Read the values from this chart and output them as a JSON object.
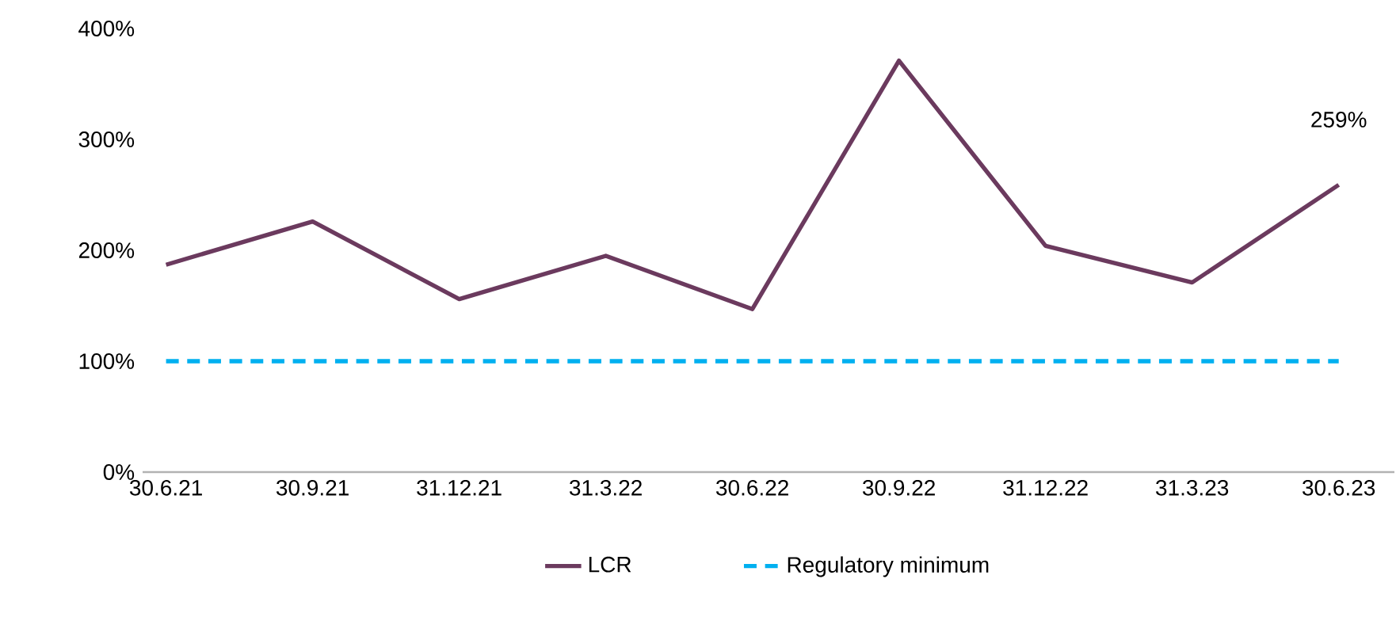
{
  "chart_data": {
    "type": "line",
    "categories": [
      "30.6.21",
      "30.9.21",
      "31.12.21",
      "31.3.22",
      "30.6.22",
      "30.9.22",
      "31.12.22",
      "31.3.23",
      "30.6.23"
    ],
    "series": [
      {
        "name": "LCR",
        "color": "#6b3a5e",
        "line_style": "solid",
        "values": [
          187,
          226,
          156,
          195,
          147,
          371,
          204,
          171,
          259
        ]
      },
      {
        "name": "Regulatory minimum",
        "color": "#00b0f0",
        "line_style": "dashed",
        "values": [
          100,
          100,
          100,
          100,
          100,
          100,
          100,
          100,
          100
        ]
      }
    ],
    "ylim": [
      0,
      400
    ],
    "yticks": [
      {
        "value": 0,
        "label": "0%"
      },
      {
        "value": 100,
        "label": "100%"
      },
      {
        "value": 200,
        "label": "200%"
      },
      {
        "value": 300,
        "label": "300%"
      },
      {
        "value": 400,
        "label": "400%"
      }
    ],
    "annotations": [
      {
        "text": "259%",
        "x": "30.6.23",
        "y": 259
      }
    ],
    "legend": "bottom",
    "grid": false
  }
}
